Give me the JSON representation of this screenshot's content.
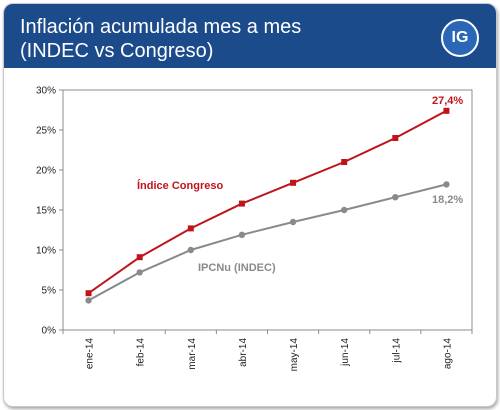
{
  "header": {
    "title_line1": "Inflación acumulada mes a mes",
    "title_line2": "(INDEC vs Congreso)",
    "badge": "IG"
  },
  "colors": {
    "header_bg": "#1c4b8c",
    "badge_bg": "#2a68b7",
    "congreso": "#c0141c",
    "indec": "#8a8a8a"
  },
  "chart_data": {
    "type": "line",
    "categories": [
      "ene-14",
      "feb-14",
      "mar-14",
      "abr-14",
      "may-14",
      "jun-14",
      "jul-14",
      "ago-14"
    ],
    "series": [
      {
        "name": "Índice Congreso",
        "values": [
          4.6,
          9.1,
          12.7,
          15.8,
          18.4,
          21.0,
          24.0,
          27.4
        ]
      },
      {
        "name": "IPCNu (INDEC)",
        "values": [
          3.7,
          7.2,
          10.0,
          11.9,
          13.5,
          15.0,
          16.6,
          18.2
        ]
      }
    ],
    "data_labels": {
      "congreso_last": "27,4%",
      "indec_last": "18,2%"
    },
    "yticks": [
      "0%",
      "5%",
      "10%",
      "15%",
      "20%",
      "25%",
      "30%"
    ],
    "ylim": [
      0,
      30
    ],
    "grid": false,
    "legend": "inline labels"
  }
}
